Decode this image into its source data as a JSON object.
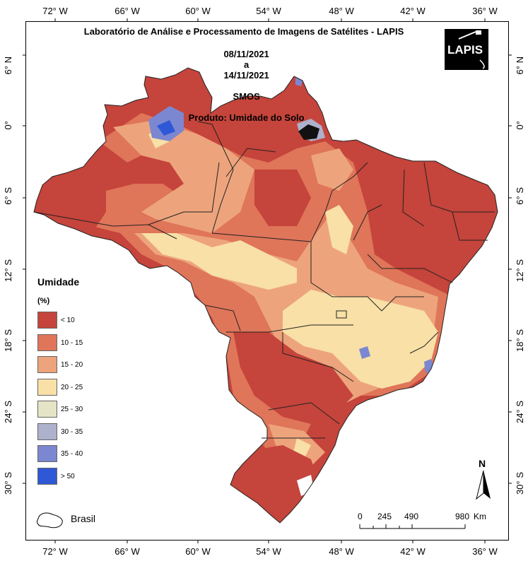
{
  "header": {
    "title_line1": "Laboratório de Análise e Processamento de Imagens de Satélites - LAPIS",
    "period_start": "08/11/2021",
    "period_sep": "a",
    "period_end": "14/11/2021",
    "sensor": "SMOS",
    "product": "Produto: Umidade do Solo"
  },
  "logo": {
    "text": "LAPIS"
  },
  "axes": {
    "longitude_labels": [
      "72° W",
      "66° W",
      "60° W",
      "54° W",
      "48° W",
      "42° W",
      "36° W"
    ],
    "latitude_labels": [
      "6° N",
      "0°",
      "6° S",
      "12° S",
      "18° S",
      "24° S",
      "30° S"
    ]
  },
  "legend": {
    "title": "Umidade",
    "unit": "(%)",
    "items": [
      {
        "label": "< 10",
        "color": "#c5443b"
      },
      {
        "label": "10 - 15",
        "color": "#df7559"
      },
      {
        "label": "15 - 20",
        "color": "#eda47c"
      },
      {
        "label": "20 - 25",
        "color": "#f8e0a6"
      },
      {
        "label": "25 - 30",
        "color": "#e6e4c6"
      },
      {
        "label": "30 - 35",
        "color": "#adb1cc"
      },
      {
        "label": "35 - 40",
        "color": "#7b87d1"
      },
      {
        "label": "> 50",
        "color": "#2f58d6"
      }
    ]
  },
  "boundary_legend": {
    "label": "Brasil"
  },
  "scale": {
    "labels": [
      "0",
      "245",
      "490",
      "980"
    ],
    "unit": "Km"
  },
  "north": {
    "label": "N"
  }
}
